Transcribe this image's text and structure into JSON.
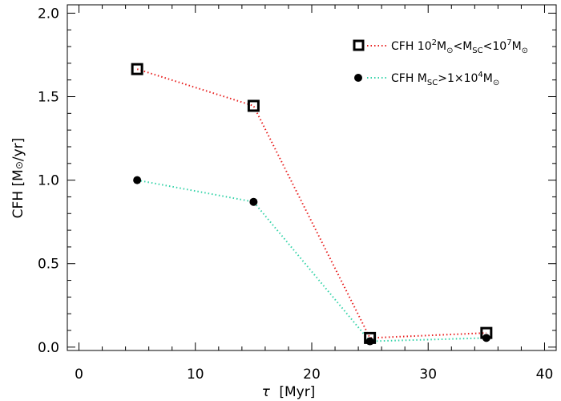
{
  "chart_data": {
    "type": "line",
    "xlabel_symbol": "τ",
    "xlabel_unit": "[Myr]",
    "ylabel_prefix": "CFH [M",
    "ylabel_sun": "⊙",
    "ylabel_suffix": "/yr]",
    "xlim": [
      -1,
      41
    ],
    "ylim": [
      -0.02,
      2.05
    ],
    "x_ticks": [
      0,
      10,
      20,
      30,
      40
    ],
    "y_ticks": [
      0.0,
      0.5,
      1.0,
      1.5,
      2.0
    ],
    "x_tick_labels": [
      "0",
      "10",
      "20",
      "30",
      "40"
    ],
    "y_tick_labels": [
      "0.0",
      "0.5",
      "1.0",
      "1.5",
      "2.0"
    ],
    "legend_position": "top-right",
    "series": [
      {
        "name": "CFH 10²M⊙<M_SC<10⁷M⊙",
        "marker": "square",
        "color": "#e8201f",
        "x": [
          5,
          15,
          25,
          35
        ],
        "y": [
          1.665,
          1.445,
          0.055,
          0.085
        ]
      },
      {
        "name": "CFH M_SC>1×10⁴M⊙",
        "marker": "circle",
        "color": "#33d3a8",
        "x": [
          5,
          15,
          25,
          35
        ],
        "y": [
          1.0,
          0.87,
          0.035,
          0.055
        ]
      }
    ],
    "legend": {
      "s1": {
        "a": "CFH  10",
        "sup1": "2",
        "b": "M",
        "sun1": "⊙",
        "c": "<M",
        "sub": "SC",
        "d": "<10",
        "sup2": "7",
        "e": "M",
        "sun2": "⊙"
      },
      "s2": {
        "a": "CFH  M",
        "sub": "SC",
        "b": ">1×10",
        "sup": "4",
        "c": "M",
        "sun": "⊙"
      }
    }
  }
}
